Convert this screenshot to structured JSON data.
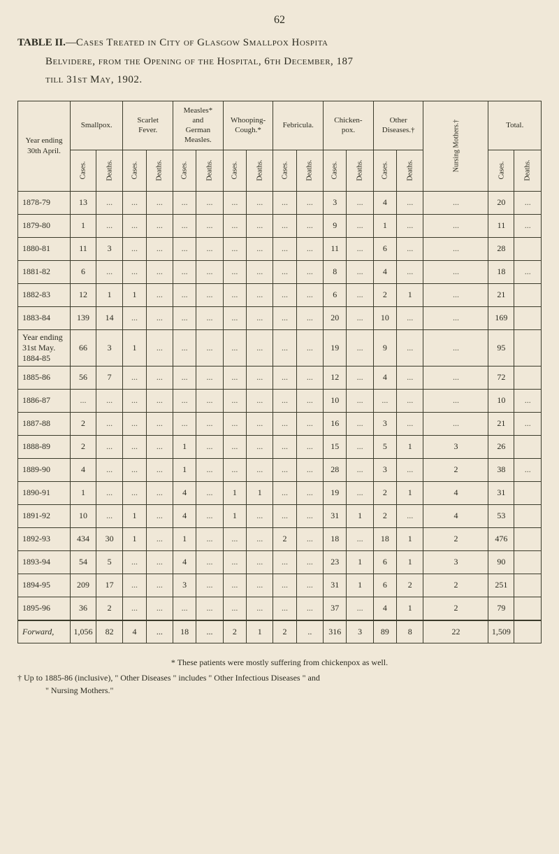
{
  "page_number": "62",
  "title_parts": {
    "table_label": "TABLE II.",
    "dash": "—",
    "line1_caps": "Cases Treated in City of Glasgow Smallpox Hospita",
    "line2_caps": "Belvidere, from the Opening of the Hospital, 6th December, 187",
    "line3_caps": "till 31st May, 1902."
  },
  "row_header_label": "Year ending\n30th April.",
  "column_groups": [
    {
      "label": "Smallpox.",
      "subs": [
        "Cases.",
        "Deaths."
      ]
    },
    {
      "label": "Scarlet\nFever.",
      "subs": [
        "Cases.",
        "Deaths."
      ]
    },
    {
      "label": "Measles*\nand\nGerman\nMeasles.",
      "subs": [
        "Cases.",
        "Deaths."
      ]
    },
    {
      "label": "Whooping-\nCough.*",
      "subs": [
        "Cases.",
        "Deaths."
      ]
    },
    {
      "label": "Febricula.",
      "subs": [
        "Cases.",
        "Deaths."
      ]
    },
    {
      "label": "Chicken-\npox.",
      "subs": [
        "Cases.",
        "Deaths."
      ]
    },
    {
      "label": "Other\nDiseases.†",
      "subs": [
        "Cases.",
        "Deaths."
      ]
    }
  ],
  "mothers_label": "Nursing Mothers.†",
  "total_group": {
    "label": "Total.",
    "subs": [
      "Cases.",
      "Deaths."
    ]
  },
  "rows": [
    {
      "label": "1878-79",
      "cells": [
        "13",
        "...",
        "...",
        "...",
        "...",
        "...",
        "...",
        "...",
        "...",
        "...",
        "3",
        "...",
        "4",
        "...",
        "...",
        "20",
        "..."
      ]
    },
    {
      "label": "1879-80",
      "cells": [
        "1",
        "...",
        "...",
        "...",
        "...",
        "...",
        "...",
        "...",
        "...",
        "...",
        "9",
        "...",
        "1",
        "...",
        "...",
        "11",
        "..."
      ]
    },
    {
      "label": "1880-81",
      "cells": [
        "11",
        "3",
        "...",
        "...",
        "...",
        "...",
        "...",
        "...",
        "...",
        "...",
        "11",
        "...",
        "6",
        "...",
        "...",
        "28",
        ""
      ]
    },
    {
      "label": "1881-82",
      "cells": [
        "6",
        "...",
        "...",
        "...",
        "...",
        "...",
        "...",
        "...",
        "...",
        "...",
        "8",
        "...",
        "4",
        "...",
        "...",
        "18",
        "..."
      ]
    },
    {
      "label": "1882-83",
      "cells": [
        "12",
        "1",
        "1",
        "...",
        "...",
        "...",
        "...",
        "...",
        "...",
        "...",
        "6",
        "...",
        "2",
        "1",
        "...",
        "21",
        ""
      ]
    },
    {
      "label": "1883-84",
      "cells": [
        "139",
        "14",
        "...",
        "...",
        "...",
        "...",
        "...",
        "...",
        "...",
        "...",
        "20",
        "...",
        "10",
        "...",
        "...",
        "169",
        ""
      ]
    },
    {
      "label": "Year ending\n31st May.\n1884-85",
      "cells": [
        "66",
        "3",
        "1",
        "...",
        "...",
        "...",
        "...",
        "...",
        "...",
        "...",
        "19",
        "...",
        "9",
        "...",
        "...",
        "95",
        ""
      ]
    },
    {
      "label": "1885-86",
      "cells": [
        "56",
        "7",
        "...",
        "...",
        "...",
        "...",
        "...",
        "...",
        "...",
        "...",
        "12",
        "...",
        "4",
        "...",
        "...",
        "72",
        ""
      ]
    },
    {
      "label": "1886-87",
      "cells": [
        "...",
        "...",
        "...",
        "...",
        "...",
        "...",
        "...",
        "...",
        "...",
        "...",
        "10",
        "...",
        "...",
        "...",
        "...",
        "10",
        "..."
      ]
    },
    {
      "label": "1887-88",
      "cells": [
        "2",
        "...",
        "...",
        "...",
        "...",
        "...",
        "...",
        "...",
        "...",
        "...",
        "16",
        "...",
        "3",
        "...",
        "...",
        "21",
        "..."
      ]
    },
    {
      "label": "1888-89",
      "cells": [
        "2",
        "...",
        "...",
        "...",
        "1",
        "...",
        "...",
        "...",
        "...",
        "...",
        "15",
        "...",
        "5",
        "1",
        "3",
        "26",
        ""
      ]
    },
    {
      "label": "1889-90",
      "cells": [
        "4",
        "...",
        "...",
        "...",
        "1",
        "...",
        "...",
        "...",
        "...",
        "...",
        "28",
        "...",
        "3",
        "...",
        "2",
        "38",
        "..."
      ]
    },
    {
      "label": "1890-91",
      "cells": [
        "1",
        "...",
        "...",
        "...",
        "4",
        "...",
        "1",
        "1",
        "...",
        "...",
        "19",
        "...",
        "2",
        "1",
        "4",
        "31",
        ""
      ]
    },
    {
      "label": "1891-92",
      "cells": [
        "10",
        "...",
        "1",
        "...",
        "4",
        "...",
        "1",
        "...",
        "...",
        "...",
        "31",
        "1",
        "2",
        "...",
        "4",
        "53",
        ""
      ]
    },
    {
      "label": "1892-93",
      "cells": [
        "434",
        "30",
        "1",
        "...",
        "1",
        "...",
        "...",
        "...",
        "2",
        "...",
        "18",
        "...",
        "18",
        "1",
        "2",
        "476",
        ""
      ]
    },
    {
      "label": "1893-94",
      "cells": [
        "54",
        "5",
        "...",
        "...",
        "4",
        "...",
        "...",
        "...",
        "...",
        "...",
        "23",
        "1",
        "6",
        "1",
        "3",
        "90",
        ""
      ]
    },
    {
      "label": "1894-95",
      "cells": [
        "209",
        "17",
        "...",
        "...",
        "3",
        "...",
        "...",
        "...",
        "...",
        "...",
        "31",
        "1",
        "6",
        "2",
        "2",
        "251",
        ""
      ]
    },
    {
      "label": "1895-96",
      "cells": [
        "36",
        "2",
        "...",
        "...",
        "...",
        "...",
        "...",
        "...",
        "...",
        "...",
        "37",
        "...",
        "4",
        "1",
        "2",
        "79",
        ""
      ]
    }
  ],
  "forward_row": {
    "label": "Forward,",
    "cells": [
      "1,056",
      "82",
      "4",
      "...",
      "18",
      "...",
      "2",
      "1",
      "2",
      "..",
      "316",
      "3",
      "89",
      "8",
      "22",
      "1,509",
      ""
    ]
  },
  "footnotes": {
    "star": "* These patients were mostly suffering from chickenpox as well.",
    "dagger": "† Up to 1885-86 (inclusive), \" Other Diseases \" includes \" Other Infectious Diseases \" and",
    "dagger_cont": "\" Nursing Mothers.\""
  }
}
